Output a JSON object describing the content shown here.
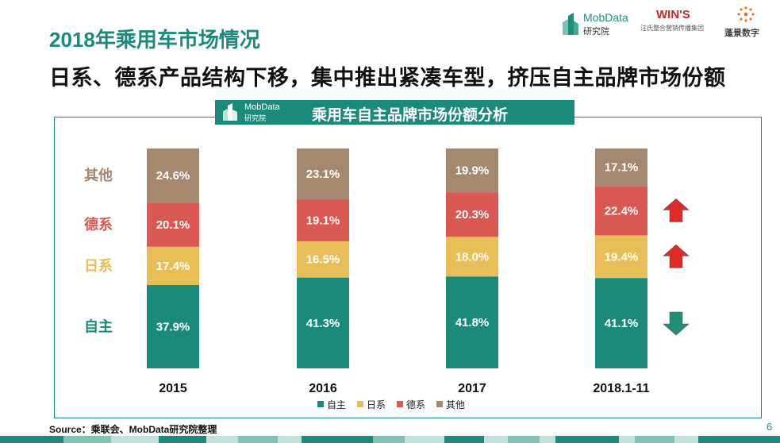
{
  "page": {
    "title": "2018年乘用车市场情况",
    "subtitle": "日系、德系产品结构下移，集中推出紧凑车型，挤压自主品牌市场份额",
    "source": "Source：乘联会、MobData研究院整理",
    "page_number": "6"
  },
  "logos": {
    "mobdata": {
      "name": "MobData",
      "sub": "研究院"
    },
    "wins": {
      "name": "WIN'S",
      "sub": "汪氏整合营销传播集团"
    },
    "pengjing": {
      "name": "蓬景数字"
    }
  },
  "chart_banner": {
    "logo_name": "MobData",
    "logo_sub": "研究院",
    "title": "乘用车自主品牌市场份额分析"
  },
  "colors": {
    "teal": "#1a8a7a",
    "yellow": "#e8bf56",
    "red": "#da5852",
    "brown": "#a48870",
    "arrow_red": "#e02a2a",
    "arrow_teal": "#1f8f7b"
  },
  "chart_data": {
    "type": "bar",
    "stacked": true,
    "title": "乘用车自主品牌市场份额分析",
    "categories": [
      "2015",
      "2016",
      "2017",
      "2018.1-11"
    ],
    "series": [
      {
        "name": "自主",
        "values": [
          37.9,
          41.3,
          41.8,
          41.1
        ],
        "labels": [
          "37.9%",
          "41.3%",
          "41.8%",
          "41.1%"
        ]
      },
      {
        "name": "日系",
        "values": [
          17.4,
          16.5,
          18.0,
          19.4
        ],
        "labels": [
          "17.4%",
          "16.5%",
          "18.0%",
          "19.4%"
        ]
      },
      {
        "name": "德系",
        "values": [
          20.1,
          19.1,
          20.3,
          22.4
        ],
        "labels": [
          "20.1%",
          "19.1%",
          "20.3%",
          "22.4%"
        ]
      },
      {
        "name": "其他",
        "values": [
          24.6,
          23.1,
          19.9,
          17.1
        ],
        "labels": [
          "24.6%",
          "23.1%",
          "19.9%",
          "17.1%"
        ]
      }
    ],
    "ylim": [
      0,
      100
    ],
    "grid": false,
    "legend": "bottom",
    "trend_arrows": [
      {
        "series": "德系",
        "direction": "up"
      },
      {
        "series": "日系",
        "direction": "up"
      },
      {
        "series": "自主",
        "direction": "down"
      }
    ]
  }
}
